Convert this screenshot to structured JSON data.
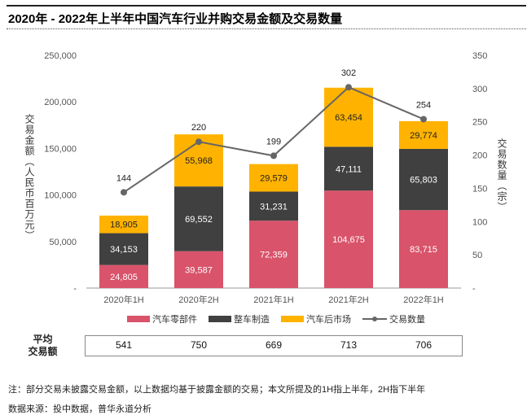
{
  "title": "2020年 - 2022年上半年中国汽车行业并购交易金额及交易数量",
  "chart_data": {
    "type": "bar",
    "stacked": true,
    "categories": [
      "2020年1H",
      "2020年2H",
      "2021年1H",
      "2021年2H",
      "2022年1H"
    ],
    "series": [
      {
        "name": "汽车零部件",
        "values": [
          24805,
          39587,
          72359,
          104675,
          83715
        ],
        "color": "#D9536A",
        "labels": [
          "24,805",
          "39,587",
          "72,359",
          "104,675",
          "83,715"
        ]
      },
      {
        "name": "整车制造",
        "values": [
          34153,
          69552,
          31231,
          47111,
          65803
        ],
        "color": "#404040",
        "labels": [
          "34,153",
          "69,552",
          "31,231",
          "47,111",
          "65,803"
        ]
      },
      {
        "name": "汽车后市场",
        "values": [
          18905,
          55968,
          29579,
          63454,
          29774
        ],
        "color": "#FFB300",
        "labels": [
          "18,905",
          "55,968",
          "29,579",
          "63,454",
          "29,774"
        ]
      }
    ],
    "line": {
      "name": "交易数量",
      "values": [
        144,
        220,
        199,
        302,
        254
      ],
      "color": "#666666",
      "axis": "right"
    },
    "ylabel": "交易金额（人民币百万元）",
    "ylabel_right": "交易数量（宗）",
    "ylim": [
      0,
      250000
    ],
    "ylim_right": [
      0,
      350
    ],
    "yticks": [
      "-",
      "50,000",
      "100,000",
      "150,000",
      "200,000",
      "250,000"
    ],
    "yticks_right": [
      "-",
      "50",
      "100",
      "150",
      "200",
      "250",
      "300",
      "350"
    ],
    "grid": false,
    "legend": "bottom"
  },
  "avg": {
    "label_line1": "平均",
    "label_line2": "交易额",
    "values": [
      "541",
      "750",
      "669",
      "713",
      "706"
    ]
  },
  "notes": {
    "note": "注：部分交易未披露交易金额，以上数据均基于披露金额的交易；本文所提及的1H指上半年，2H指下半年",
    "source": "数据来源：投中数据，普华永道分析"
  }
}
